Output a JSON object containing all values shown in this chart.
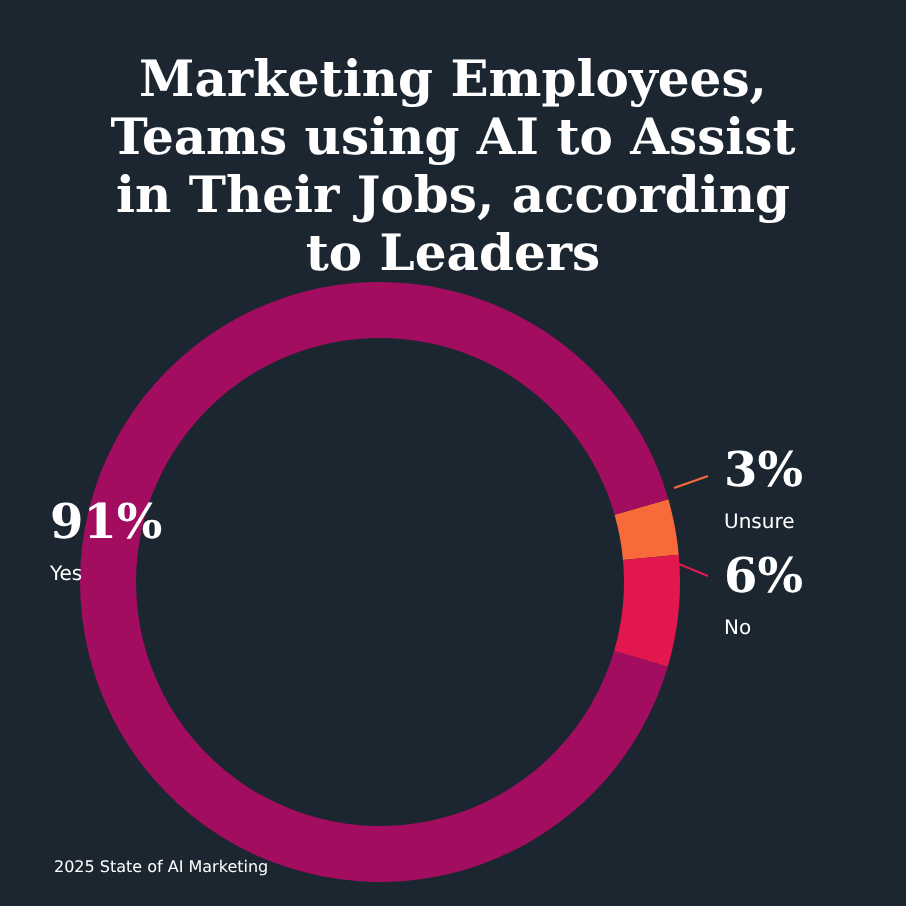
{
  "chart_data": {
    "type": "donut",
    "title": "Marketing  Employees, Teams using AI to Assist in Their Jobs, according to Leaders",
    "categories": [
      "Unsure",
      "No",
      "Yes"
    ],
    "values": [
      3,
      6,
      91
    ],
    "value_labels": [
      "3%",
      "6%",
      "91%"
    ],
    "colors": [
      "#f96a3b",
      "#e3174f",
      "#a20d5f"
    ],
    "legend": false,
    "annotations": [
      "2025 State of AI Marketing"
    ]
  }
}
